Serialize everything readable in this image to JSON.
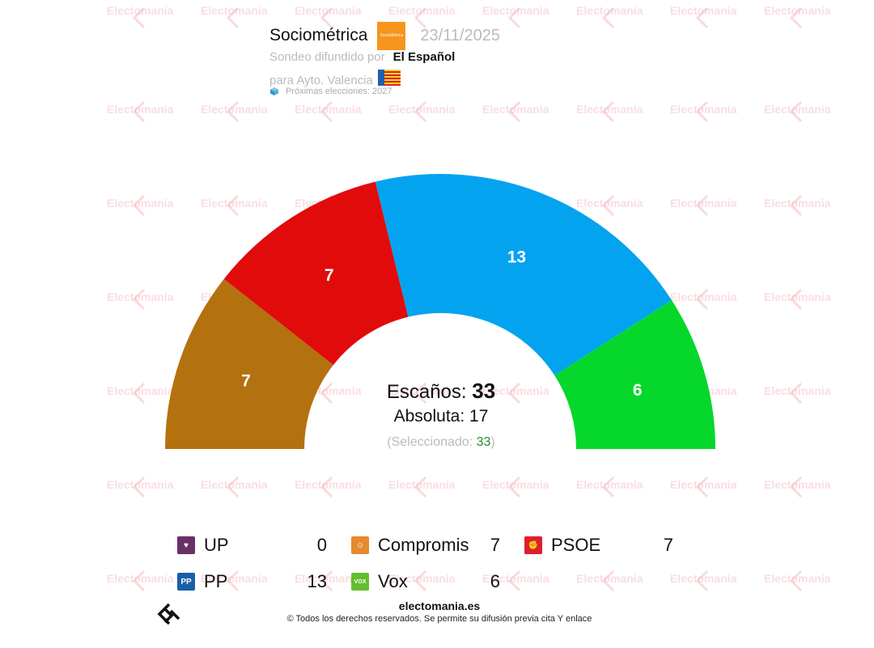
{
  "header": {
    "pollster": "Sociométrica",
    "pollster_logo_text": "SocioMétrica",
    "date": "23/11/2025",
    "published_by_label": "Sondeo difundido por",
    "media": "El Español",
    "scope_label": "para Ayto. Valencia",
    "next_elections": "Próximas elecciones: 2027"
  },
  "watermark": {
    "text": "Electomania",
    "color": "#f2b6bd"
  },
  "chart_data": {
    "type": "hemicycle",
    "total_seats": 33,
    "majority": 17,
    "selected": 33,
    "seats_label": "Escaños:",
    "majority_label": "Absoluta:",
    "selected_label": "Seleccionado:",
    "series": [
      {
        "name": "Compromis",
        "value": 7,
        "color": "#b3720f"
      },
      {
        "name": "PSOE",
        "value": 7,
        "color": "#e10b0b"
      },
      {
        "name": "PP",
        "value": 13,
        "color": "#03a3f0"
      },
      {
        "name": "Vox",
        "value": 6,
        "color": "#05d82b"
      }
    ]
  },
  "legend": [
    {
      "name": "UP",
      "value": "0",
      "color": "#6b2f68",
      "icon": "heart-icon",
      "glyph": "♥"
    },
    {
      "name": "Compromis",
      "value": "7",
      "color": "#e58a2f",
      "icon": "smile-icon",
      "glyph": "☺"
    },
    {
      "name": "PSOE",
      "value": "7",
      "color": "#e01e2b",
      "icon": "rose-fist-icon",
      "glyph": "✊"
    },
    {
      "name": "PP",
      "value": "13",
      "color": "#1a5ea8",
      "icon": "pp-logo-icon",
      "glyph": "PP"
    },
    {
      "name": "Vox",
      "value": "6",
      "color": "#63be2e",
      "icon": "vox-logo-icon",
      "glyph": "VOX"
    }
  ],
  "footer": {
    "site": "electomania.es",
    "rights": "© Todos los derechos reservados. Se permite su difusión previa cita Y enlace"
  }
}
